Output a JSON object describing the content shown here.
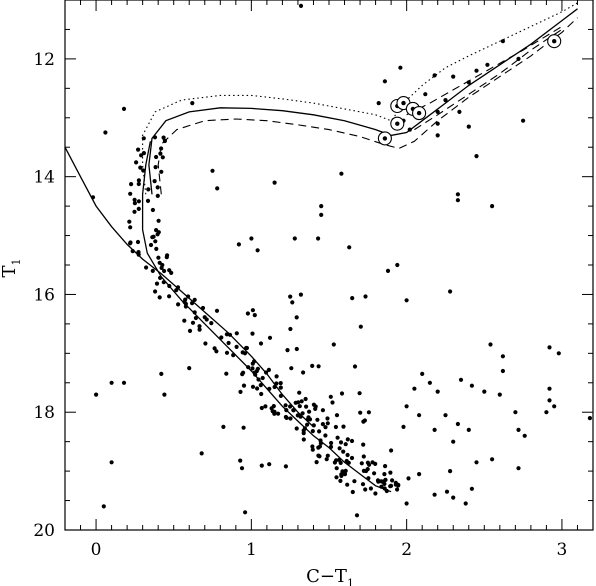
{
  "chart_data": {
    "type": "scatter",
    "title": "",
    "xlabel": "C−T",
    "xlabel_sub": "1",
    "ylabel": "T",
    "ylabel_sub": "1",
    "xlim": [
      -0.2,
      3.2
    ],
    "ylim": [
      20,
      11
    ],
    "y_inverted": true,
    "grid": false,
    "x_ticks": [
      {
        "value": 0,
        "label": "0"
      },
      {
        "value": 1,
        "label": "1"
      },
      {
        "value": 2,
        "label": "2"
      },
      {
        "value": 3,
        "label": "3"
      }
    ],
    "y_ticks": [
      {
        "value": 12,
        "label": "12"
      },
      {
        "value": 14,
        "label": "14"
      },
      {
        "value": 16,
        "label": "16"
      },
      {
        "value": 18,
        "label": "18"
      },
      {
        "value": 20,
        "label": "20"
      }
    ],
    "circled_stars": [
      [
        1.86,
        13.35
      ],
      [
        1.94,
        13.1
      ],
      [
        1.94,
        12.8
      ],
      [
        1.98,
        12.75
      ],
      [
        2.04,
        12.85
      ],
      [
        2.08,
        12.92
      ],
      [
        2.95,
        11.7
      ]
    ],
    "stars": [
      [
        1.32,
        11.1
      ],
      [
        1.96,
        12.15
      ],
      [
        1.86,
        12.38
      ],
      [
        2.18,
        12.28
      ],
      [
        2.3,
        12.3
      ],
      [
        2.12,
        12.6
      ],
      [
        2.25,
        12.7
      ],
      [
        2.4,
        12.4
      ],
      [
        2.2,
        12.9
      ],
      [
        1.82,
        12.75
      ],
      [
        1.98,
        13.05
      ],
      [
        2.02,
        13.2
      ],
      [
        2.52,
        12.1
      ],
      [
        2.62,
        11.7
      ],
      [
        2.72,
        12.0
      ],
      [
        2.45,
        12.2
      ],
      [
        2.34,
        12.9
      ],
      [
        2.2,
        13.1
      ],
      [
        2.4,
        13.15
      ],
      [
        2.45,
        13.65
      ],
      [
        2.33,
        14.3
      ],
      [
        2.33,
        14.4
      ],
      [
        2.55,
        14.5
      ],
      [
        2.2,
        13.3
      ],
      [
        2.75,
        13.05
      ],
      [
        0.18,
        12.85
      ],
      [
        0.06,
        13.25
      ],
      [
        0.62,
        12.75
      ],
      [
        -0.02,
        14.35
      ],
      [
        0.75,
        13.9
      ],
      [
        0.78,
        14.2
      ],
      [
        1.15,
        14.1
      ],
      [
        1.45,
        14.5
      ],
      [
        1.45,
        14.65
      ],
      [
        1.58,
        13.95
      ],
      [
        0.92,
        15.15
      ],
      [
        1.0,
        15.05
      ],
      [
        1.04,
        15.25
      ],
      [
        1.28,
        15.05
      ],
      [
        1.43,
        15.05
      ],
      [
        1.63,
        15.2
      ],
      [
        1.88,
        15.6
      ],
      [
        1.94,
        15.5
      ],
      [
        2.28,
        15.95
      ],
      [
        2.0,
        16.1
      ],
      [
        2.54,
        16.85
      ],
      [
        2.62,
        17.05
      ],
      [
        2.62,
        17.3
      ],
      [
        2.92,
        16.9
      ],
      [
        2.98,
        17.0
      ],
      [
        2.92,
        17.6
      ],
      [
        2.92,
        17.8
      ],
      [
        2.95,
        17.9
      ],
      [
        2.9,
        18.0
      ],
      [
        3.18,
        18.1
      ],
      [
        2.7,
        18.0
      ],
      [
        2.72,
        18.3
      ],
      [
        2.76,
        18.4
      ],
      [
        2.72,
        18.95
      ],
      [
        2.4,
        18.3
      ],
      [
        2.45,
        18.85
      ],
      [
        2.55,
        18.8
      ],
      [
        2.18,
        19.4
      ],
      [
        2.26,
        19.35
      ],
      [
        2.3,
        19.45
      ],
      [
        2.38,
        19.55
      ],
      [
        2.08,
        19.05
      ],
      [
        2.0,
        19.55
      ],
      [
        1.9,
        19.25
      ],
      [
        1.68,
        19.75
      ],
      [
        0.96,
        19.7
      ],
      [
        0.94,
        18.95
      ],
      [
        0.68,
        18.7
      ],
      [
        0.82,
        18.25
      ],
      [
        0.0,
        17.7
      ],
      [
        0.1,
        17.5
      ],
      [
        0.18,
        17.5
      ],
      [
        0.42,
        17.35
      ],
      [
        0.6,
        17.25
      ],
      [
        0.44,
        17.7
      ],
      [
        0.05,
        19.6
      ],
      [
        0.1,
        18.85
      ],
      [
        0.38,
        15.95
      ],
      [
        0.41,
        16.05
      ],
      [
        2.1,
        17.35
      ],
      [
        2.15,
        17.5
      ],
      [
        2.2,
        17.65
      ],
      [
        2.35,
        17.45
      ],
      [
        2.42,
        17.55
      ],
      [
        2.5,
        17.65
      ],
      [
        2.6,
        17.7
      ],
      [
        2.0,
        17.9
      ],
      [
        2.08,
        18.05
      ],
      [
        2.18,
        18.3
      ],
      [
        2.3,
        18.5
      ],
      [
        2.28,
        19.0
      ],
      [
        2.42,
        19.3
      ],
      [
        1.98,
        18.25
      ],
      [
        1.9,
        18.65
      ],
      [
        1.78,
        18.85
      ],
      [
        1.72,
        18.55
      ],
      [
        2.05,
        17.6
      ],
      [
        2.25,
        18.05
      ],
      [
        2.33,
        18.2
      ]
    ],
    "isochrones": [
      {
        "style": "solid",
        "points": [
          [
            0.35,
            13.4
          ],
          [
            0.32,
            13.8
          ],
          [
            0.3,
            14.3
          ],
          [
            0.3,
            14.9
          ],
          [
            0.33,
            15.3
          ],
          [
            0.42,
            15.7
          ],
          [
            0.55,
            16.1
          ],
          [
            0.7,
            16.5
          ],
          [
            0.85,
            16.9
          ],
          [
            1.0,
            17.3
          ],
          [
            1.1,
            17.6
          ],
          [
            1.2,
            17.9
          ],
          [
            1.3,
            18.15
          ],
          [
            1.4,
            18.4
          ],
          [
            1.5,
            18.6
          ],
          [
            1.6,
            18.85
          ],
          [
            1.7,
            19.05
          ],
          [
            1.8,
            19.25
          ],
          [
            1.9,
            19.35
          ]
        ]
      },
      {
        "style": "solid",
        "points": [
          [
            -0.2,
            13.5
          ],
          [
            -0.1,
            14.0
          ],
          [
            0.0,
            14.5
          ],
          [
            0.1,
            14.85
          ],
          [
            0.2,
            15.15
          ],
          [
            0.3,
            15.4
          ],
          [
            0.42,
            15.65
          ],
          [
            0.55,
            15.95
          ],
          [
            0.7,
            16.3
          ],
          [
            0.85,
            16.65
          ],
          [
            1.0,
            17.05
          ],
          [
            1.1,
            17.35
          ],
          [
            1.2,
            17.7
          ],
          [
            1.3,
            18.0
          ],
          [
            1.4,
            18.25
          ]
        ]
      },
      {
        "style": "solid",
        "points": [
          [
            0.36,
            14.3
          ],
          [
            0.34,
            13.8
          ],
          [
            0.36,
            13.35
          ],
          [
            0.45,
            13.05
          ],
          [
            0.6,
            12.9
          ],
          [
            0.8,
            12.83
          ],
          [
            1.0,
            12.84
          ],
          [
            1.2,
            12.88
          ],
          [
            1.4,
            12.95
          ],
          [
            1.6,
            13.05
          ],
          [
            1.8,
            13.2
          ],
          [
            1.9,
            13.3
          ],
          [
            2.0,
            13.25
          ],
          [
            2.1,
            13.05
          ],
          [
            2.25,
            12.75
          ],
          [
            2.4,
            12.45
          ],
          [
            2.6,
            12.1
          ],
          [
            2.8,
            11.75
          ],
          [
            3.0,
            11.35
          ],
          [
            3.1,
            11.15
          ]
        ]
      },
      {
        "style": "dotted",
        "points": [
          [
            0.32,
            14.3
          ],
          [
            0.3,
            13.8
          ],
          [
            0.3,
            13.3
          ],
          [
            0.38,
            12.9
          ],
          [
            0.55,
            12.7
          ],
          [
            0.8,
            12.62
          ],
          [
            1.0,
            12.62
          ],
          [
            1.2,
            12.68
          ],
          [
            1.4,
            12.75
          ],
          [
            1.6,
            12.85
          ],
          [
            1.8,
            12.95
          ],
          [
            1.9,
            13.05
          ],
          [
            2.0,
            12.7
          ],
          [
            2.1,
            12.45
          ],
          [
            2.25,
            12.15
          ],
          [
            2.4,
            11.95
          ],
          [
            2.6,
            11.7
          ],
          [
            2.8,
            11.45
          ],
          [
            3.0,
            11.2
          ],
          [
            3.1,
            11.05
          ]
        ]
      },
      {
        "style": "dashed",
        "points": [
          [
            0.42,
            14.3
          ],
          [
            0.4,
            13.8
          ],
          [
            0.42,
            13.45
          ],
          [
            0.52,
            13.2
          ],
          [
            0.7,
            13.05
          ],
          [
            0.9,
            13.02
          ],
          [
            1.1,
            13.05
          ],
          [
            1.3,
            13.12
          ],
          [
            1.5,
            13.2
          ],
          [
            1.7,
            13.32
          ],
          [
            1.85,
            13.45
          ],
          [
            1.95,
            13.52
          ],
          [
            2.05,
            13.4
          ],
          [
            2.2,
            13.05
          ],
          [
            2.4,
            12.65
          ],
          [
            2.6,
            12.3
          ],
          [
            2.8,
            11.95
          ],
          [
            3.0,
            11.55
          ],
          [
            3.1,
            11.3
          ]
        ]
      },
      {
        "style": "dashed",
        "points": [
          [
            2.05,
            13.2
          ],
          [
            2.2,
            12.95
          ],
          [
            2.4,
            12.6
          ],
          [
            2.6,
            12.25
          ],
          [
            2.8,
            11.85
          ],
          [
            3.0,
            11.5
          ]
        ]
      },
      {
        "style": "dashed",
        "points": [
          [
            2.0,
            12.95
          ],
          [
            2.15,
            12.75
          ],
          [
            2.35,
            12.45
          ],
          [
            2.55,
            12.15
          ],
          [
            2.75,
            11.85
          ],
          [
            3.0,
            11.45
          ]
        ]
      }
    ]
  }
}
